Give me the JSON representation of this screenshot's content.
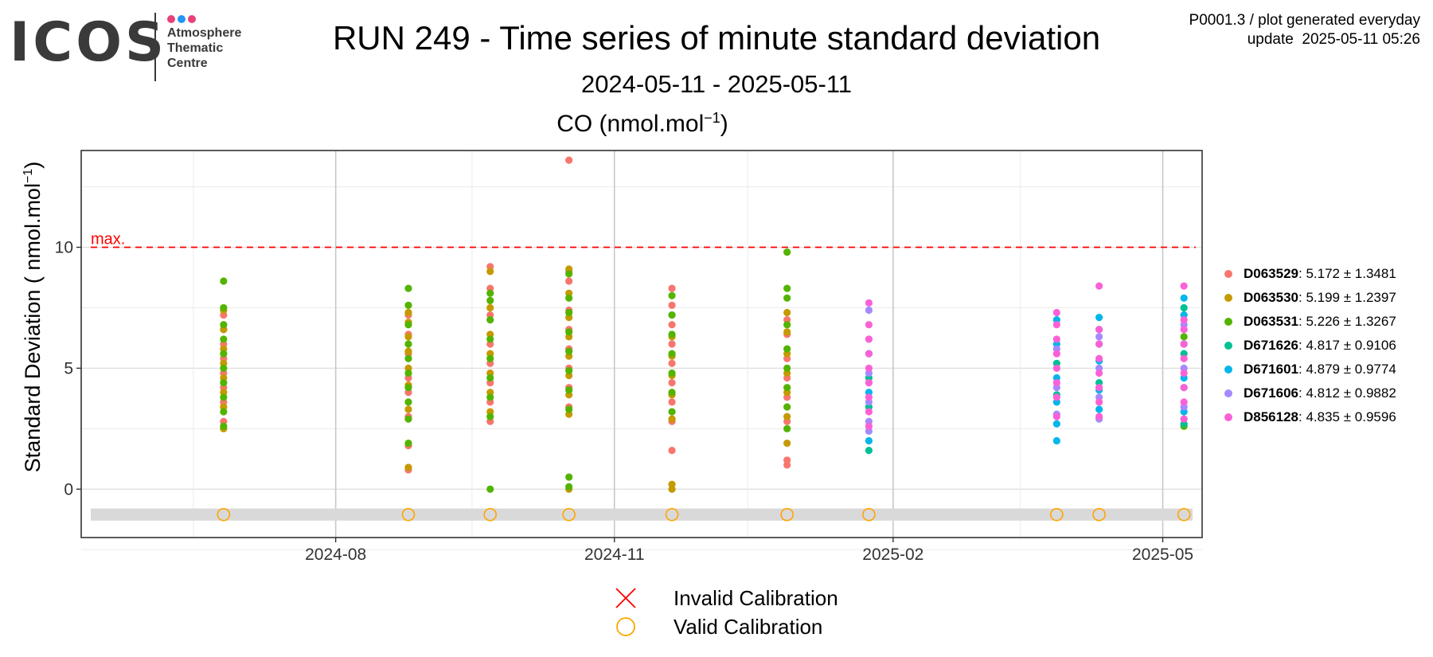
{
  "logo": {
    "word": "ICOS",
    "lines": [
      "Atmosphere",
      "Thematic",
      "Centre"
    ],
    "dot_colors": [
      "#e8417a",
      "#2196f3",
      "#e8417a"
    ]
  },
  "header": {
    "title": "RUN 249 - Time series of minute standard deviation",
    "subtitle": "2024-05-11 - 2025-05-11",
    "product": "P0001.3 / plot generated everyday",
    "update": "update  2025-05-11 05:26"
  },
  "panel": {
    "species": "CO (nmol.mol",
    "species_exp": "−1",
    "species_close": ")"
  },
  "axes": {
    "ylabel": "Standard Deviation ( nmol.mol",
    "ylabel_exp": "−1",
    "ylabel_close": ")",
    "yticks": [
      "0",
      "5",
      "10"
    ],
    "xticks": [
      "2024-08",
      "2024-11",
      "2025-02",
      "2025-05"
    ]
  },
  "threshold": {
    "label": "max.",
    "value": 10,
    "color": "#ff0000"
  },
  "legend": [
    {
      "id": "D063529",
      "stats": ": 5.172 ± 1.3481",
      "color": "#f8766d"
    },
    {
      "id": "D063530",
      "stats": ": 5.199 ± 1.2397",
      "color": "#c49a00"
    },
    {
      "id": "D063531",
      "stats": ": 5.226 ± 1.3267",
      "color": "#53b400"
    },
    {
      "id": "D671626",
      "stats": ": 4.817 ± 0.9106",
      "color": "#00c094"
    },
    {
      "id": "D671601",
      "stats": ": 4.879 ± 0.9774",
      "color": "#00b6eb"
    },
    {
      "id": "D671606",
      "stats": ": 4.812 ± 0.9882",
      "color": "#a58aff"
    },
    {
      "id": "D856128",
      "stats": ": 4.835 ± 0.9596",
      "color": "#fb61d7"
    }
  ],
  "calibration_legend": {
    "invalid": "Invalid Calibration",
    "valid": "Valid Calibration",
    "invalid_color": "#ff0000",
    "valid_color": "#ffa500"
  },
  "chart_data": {
    "type": "scatter",
    "title": "CO (nmol.mol−1)",
    "ylabel": "Standard Deviation ( nmol.mol−1)",
    "xlabel": "",
    "x_axis": "date",
    "xlim": [
      "2024-05-11",
      "2025-05-11"
    ],
    "ylim": [
      -2,
      14
    ],
    "threshold_max": 10,
    "grid": true,
    "legend_position": "right",
    "calibrations": [
      {
        "date": "2024-06-25",
        "status": "valid"
      },
      {
        "date": "2024-08-25",
        "status": "valid"
      },
      {
        "date": "2024-09-21",
        "status": "valid"
      },
      {
        "date": "2024-10-17",
        "status": "valid"
      },
      {
        "date": "2024-11-20",
        "status": "valid"
      },
      {
        "date": "2024-12-28",
        "status": "valid"
      },
      {
        "date": "2025-01-24",
        "status": "valid"
      },
      {
        "date": "2025-03-27",
        "status": "valid"
      },
      {
        "date": "2025-04-10",
        "status": "valid"
      },
      {
        "date": "2025-05-08",
        "status": "valid"
      }
    ],
    "series": [
      {
        "name": "D063529",
        "color": "#f8766d",
        "points": [
          [
            "2024-06-25",
            2.8
          ],
          [
            "2024-06-25",
            3.6
          ],
          [
            "2024-06-25",
            4.2
          ],
          [
            "2024-06-25",
            4.8
          ],
          [
            "2024-06-25",
            5.4
          ],
          [
            "2024-06-25",
            6.0
          ],
          [
            "2024-06-25",
            6.6
          ],
          [
            "2024-06-25",
            7.2
          ],
          [
            "2024-08-25",
            0.8
          ],
          [
            "2024-08-25",
            1.8
          ],
          [
            "2024-08-25",
            3.0
          ],
          [
            "2024-08-25",
            4.0
          ],
          [
            "2024-08-25",
            4.6
          ],
          [
            "2024-08-25",
            5.6
          ],
          [
            "2024-08-25",
            6.4
          ],
          [
            "2024-08-25",
            7.2
          ],
          [
            "2024-09-21",
            2.8
          ],
          [
            "2024-09-21",
            3.6
          ],
          [
            "2024-09-21",
            4.4
          ],
          [
            "2024-09-21",
            5.2
          ],
          [
            "2024-09-21",
            6.0
          ],
          [
            "2024-09-21",
            7.2
          ],
          [
            "2024-09-21",
            8.3
          ],
          [
            "2024-09-21",
            9.2
          ],
          [
            "2024-10-17",
            13.6
          ],
          [
            "2024-10-17",
            3.4
          ],
          [
            "2024-10-17",
            4.2
          ],
          [
            "2024-10-17",
            5.0
          ],
          [
            "2024-10-17",
            5.8
          ],
          [
            "2024-10-17",
            6.6
          ],
          [
            "2024-10-17",
            7.4
          ],
          [
            "2024-10-17",
            8.6
          ],
          [
            "2024-10-17",
            9.0
          ],
          [
            "2024-11-20",
            1.6
          ],
          [
            "2024-11-20",
            2.8
          ],
          [
            "2024-11-20",
            3.6
          ],
          [
            "2024-11-20",
            4.4
          ],
          [
            "2024-11-20",
            5.2
          ],
          [
            "2024-11-20",
            6.0
          ],
          [
            "2024-11-20",
            6.8
          ],
          [
            "2024-11-20",
            7.6
          ],
          [
            "2024-11-20",
            8.3
          ],
          [
            "2024-12-28",
            1.0
          ],
          [
            "2024-12-28",
            1.2
          ],
          [
            "2024-12-28",
            2.8
          ],
          [
            "2024-12-28",
            3.8
          ],
          [
            "2024-12-28",
            4.6
          ],
          [
            "2024-12-28",
            5.4
          ],
          [
            "2024-12-28",
            6.4
          ],
          [
            "2024-12-28",
            7.0
          ]
        ]
      },
      {
        "name": "D063530",
        "color": "#c49a00",
        "points": [
          [
            "2024-06-25",
            2.5
          ],
          [
            "2024-06-25",
            3.4
          ],
          [
            "2024-06-25",
            4.0
          ],
          [
            "2024-06-25",
            4.6
          ],
          [
            "2024-06-25",
            5.2
          ],
          [
            "2024-06-25",
            5.8
          ],
          [
            "2024-06-25",
            6.6
          ],
          [
            "2024-06-25",
            7.4
          ],
          [
            "2024-08-25",
            0.9
          ],
          [
            "2024-08-25",
            3.3
          ],
          [
            "2024-08-25",
            4.3
          ],
          [
            "2024-08-25",
            5.0
          ],
          [
            "2024-08-25",
            5.7
          ],
          [
            "2024-08-25",
            6.3
          ],
          [
            "2024-08-25",
            6.9
          ],
          [
            "2024-08-25",
            7.3
          ],
          [
            "2024-09-21",
            3.2
          ],
          [
            "2024-09-21",
            4.0
          ],
          [
            "2024-09-21",
            4.8
          ],
          [
            "2024-09-21",
            5.6
          ],
          [
            "2024-09-21",
            6.4
          ],
          [
            "2024-09-21",
            7.5
          ],
          [
            "2024-09-21",
            9.0
          ],
          [
            "2024-10-17",
            0.0
          ],
          [
            "2024-10-17",
            3.1
          ],
          [
            "2024-10-17",
            3.9
          ],
          [
            "2024-10-17",
            4.7
          ],
          [
            "2024-10-17",
            5.5
          ],
          [
            "2024-10-17",
            6.3
          ],
          [
            "2024-10-17",
            7.1
          ],
          [
            "2024-10-17",
            8.1
          ],
          [
            "2024-10-17",
            9.1
          ],
          [
            "2024-11-20",
            0.0
          ],
          [
            "2024-11-20",
            0.2
          ],
          [
            "2024-11-20",
            2.9
          ],
          [
            "2024-11-20",
            3.9
          ],
          [
            "2024-11-20",
            4.7
          ],
          [
            "2024-11-20",
            5.5
          ],
          [
            "2024-11-20",
            6.3
          ],
          [
            "2024-11-20",
            7.2
          ],
          [
            "2024-12-28",
            1.9
          ],
          [
            "2024-12-28",
            3.0
          ],
          [
            "2024-12-28",
            4.0
          ],
          [
            "2024-12-28",
            4.8
          ],
          [
            "2024-12-28",
            5.6
          ],
          [
            "2024-12-28",
            6.5
          ],
          [
            "2024-12-28",
            7.3
          ]
        ]
      },
      {
        "name": "D063531",
        "color": "#53b400",
        "points": [
          [
            "2024-06-25",
            2.6
          ],
          [
            "2024-06-25",
            3.2
          ],
          [
            "2024-06-25",
            3.8
          ],
          [
            "2024-06-25",
            4.4
          ],
          [
            "2024-06-25",
            5.0
          ],
          [
            "2024-06-25",
            5.6
          ],
          [
            "2024-06-25",
            6.2
          ],
          [
            "2024-06-25",
            6.8
          ],
          [
            "2024-06-25",
            7.5
          ],
          [
            "2024-06-25",
            8.6
          ],
          [
            "2024-08-25",
            1.9
          ],
          [
            "2024-08-25",
            2.9
          ],
          [
            "2024-08-25",
            3.6
          ],
          [
            "2024-08-25",
            4.2
          ],
          [
            "2024-08-25",
            4.8
          ],
          [
            "2024-08-25",
            5.4
          ],
          [
            "2024-08-25",
            6.0
          ],
          [
            "2024-08-25",
            6.8
          ],
          [
            "2024-08-25",
            7.6
          ],
          [
            "2024-08-25",
            8.3
          ],
          [
            "2024-09-21",
            0.0
          ],
          [
            "2024-09-21",
            3.0
          ],
          [
            "2024-09-21",
            3.8
          ],
          [
            "2024-09-21",
            4.6
          ],
          [
            "2024-09-21",
            5.4
          ],
          [
            "2024-09-21",
            6.2
          ],
          [
            "2024-09-21",
            7.0
          ],
          [
            "2024-09-21",
            7.8
          ],
          [
            "2024-09-21",
            8.1
          ],
          [
            "2024-10-17",
            0.1
          ],
          [
            "2024-10-17",
            0.5
          ],
          [
            "2024-10-17",
            3.3
          ],
          [
            "2024-10-17",
            4.1
          ],
          [
            "2024-10-17",
            4.9
          ],
          [
            "2024-10-17",
            5.7
          ],
          [
            "2024-10-17",
            6.5
          ],
          [
            "2024-10-17",
            7.3
          ],
          [
            "2024-10-17",
            7.9
          ],
          [
            "2024-10-17",
            8.9
          ],
          [
            "2024-11-20",
            3.2
          ],
          [
            "2024-11-20",
            4.0
          ],
          [
            "2024-11-20",
            4.8
          ],
          [
            "2024-11-20",
            5.6
          ],
          [
            "2024-11-20",
            6.4
          ],
          [
            "2024-11-20",
            7.2
          ],
          [
            "2024-11-20",
            8.0
          ],
          [
            "2024-12-28",
            2.5
          ],
          [
            "2024-12-28",
            3.4
          ],
          [
            "2024-12-28",
            4.2
          ],
          [
            "2024-12-28",
            5.0
          ],
          [
            "2024-12-28",
            5.8
          ],
          [
            "2024-12-28",
            6.8
          ],
          [
            "2024-12-28",
            7.9
          ],
          [
            "2024-12-28",
            8.3
          ],
          [
            "2024-12-28",
            9.8
          ],
          [
            "2025-05-08",
            2.6
          ],
          [
            "2025-05-08",
            6.3
          ]
        ]
      },
      {
        "name": "D671626",
        "color": "#00c094",
        "points": [
          [
            "2025-01-24",
            1.6
          ],
          [
            "2025-01-24",
            3.4
          ],
          [
            "2025-01-24",
            4.6
          ],
          [
            "2025-03-27",
            3.9
          ],
          [
            "2025-03-27",
            5.2
          ],
          [
            "2025-04-10",
            4.4
          ],
          [
            "2025-04-10",
            6.0
          ],
          [
            "2025-05-08",
            2.7
          ],
          [
            "2025-05-08",
            4.2
          ],
          [
            "2025-05-08",
            5.6
          ],
          [
            "2025-05-08",
            7.5
          ]
        ]
      },
      {
        "name": "D671601",
        "color": "#00b6eb",
        "points": [
          [
            "2025-01-24",
            2.0
          ],
          [
            "2025-01-24",
            4.0
          ],
          [
            "2025-01-24",
            5.6
          ],
          [
            "2025-03-27",
            2.0
          ],
          [
            "2025-03-27",
            2.7
          ],
          [
            "2025-03-27",
            3.6
          ],
          [
            "2025-03-27",
            4.6
          ],
          [
            "2025-03-27",
            6.0
          ],
          [
            "2025-03-27",
            7.0
          ],
          [
            "2025-04-10",
            3.3
          ],
          [
            "2025-04-10",
            4.1
          ],
          [
            "2025-04-10",
            5.3
          ],
          [
            "2025-04-10",
            6.6
          ],
          [
            "2025-04-10",
            7.1
          ],
          [
            "2025-05-08",
            3.2
          ],
          [
            "2025-05-08",
            4.6
          ],
          [
            "2025-05-08",
            6.0
          ],
          [
            "2025-05-08",
            7.2
          ],
          [
            "2025-05-08",
            7.9
          ]
        ]
      },
      {
        "name": "D671606",
        "color": "#a58aff",
        "points": [
          [
            "2025-01-24",
            2.4
          ],
          [
            "2025-01-24",
            2.8
          ],
          [
            "2025-01-24",
            3.6
          ],
          [
            "2025-01-24",
            4.8
          ],
          [
            "2025-01-24",
            6.2
          ],
          [
            "2025-01-24",
            7.4
          ],
          [
            "2025-03-27",
            3.1
          ],
          [
            "2025-03-27",
            4.2
          ],
          [
            "2025-03-27",
            5.8
          ],
          [
            "2025-04-10",
            2.9
          ],
          [
            "2025-04-10",
            3.8
          ],
          [
            "2025-04-10",
            5.0
          ],
          [
            "2025-04-10",
            6.3
          ],
          [
            "2025-05-08",
            3.4
          ],
          [
            "2025-05-08",
            5.0
          ],
          [
            "2025-05-08",
            6.8
          ]
        ]
      },
      {
        "name": "D856128",
        "color": "#fb61d7",
        "points": [
          [
            "2025-01-24",
            2.6
          ],
          [
            "2025-01-24",
            3.2
          ],
          [
            "2025-01-24",
            3.8
          ],
          [
            "2025-01-24",
            4.4
          ],
          [
            "2025-01-24",
            5.0
          ],
          [
            "2025-01-24",
            5.6
          ],
          [
            "2025-01-24",
            6.2
          ],
          [
            "2025-01-24",
            6.8
          ],
          [
            "2025-01-24",
            7.7
          ],
          [
            "2025-03-27",
            3.0
          ],
          [
            "2025-03-27",
            3.8
          ],
          [
            "2025-03-27",
            4.4
          ],
          [
            "2025-03-27",
            5.0
          ],
          [
            "2025-03-27",
            5.6
          ],
          [
            "2025-03-27",
            6.2
          ],
          [
            "2025-03-27",
            6.8
          ],
          [
            "2025-03-27",
            7.3
          ],
          [
            "2025-04-10",
            3.0
          ],
          [
            "2025-04-10",
            3.6
          ],
          [
            "2025-04-10",
            4.2
          ],
          [
            "2025-04-10",
            4.8
          ],
          [
            "2025-04-10",
            5.4
          ],
          [
            "2025-04-10",
            6.0
          ],
          [
            "2025-04-10",
            6.6
          ],
          [
            "2025-04-10",
            8.4
          ],
          [
            "2025-05-08",
            2.9
          ],
          [
            "2025-05-08",
            3.6
          ],
          [
            "2025-05-08",
            4.2
          ],
          [
            "2025-05-08",
            4.8
          ],
          [
            "2025-05-08",
            5.4
          ],
          [
            "2025-05-08",
            6.0
          ],
          [
            "2025-05-08",
            6.6
          ],
          [
            "2025-05-08",
            7.0
          ],
          [
            "2025-05-08",
            8.4
          ]
        ]
      }
    ]
  }
}
